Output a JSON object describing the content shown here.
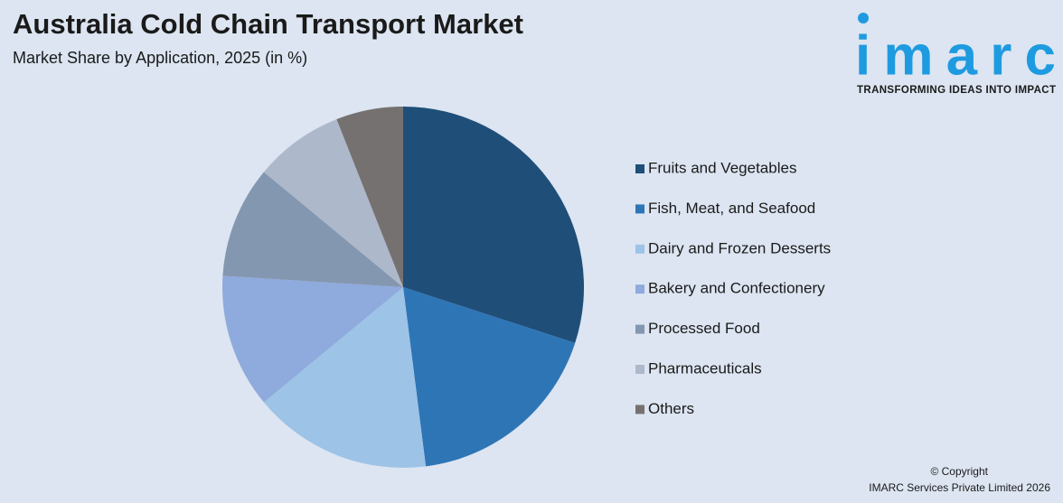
{
  "chart_data": {
    "type": "pie",
    "title": "Australia Cold Chain Transport Market",
    "subtitle": "Market Share by Application, 2025 (in %)",
    "categories": [
      "Fruits and Vegetables",
      "Fish, Meat, and Seafood",
      "Dairy and Frozen Desserts",
      "Bakery and Confectionery",
      "Processed Food",
      "Pharmaceuticals",
      "Others"
    ],
    "values": [
      30,
      18,
      16,
      12,
      10,
      8,
      6
    ],
    "colors": [
      "#1f4e79",
      "#2e75b6",
      "#9dc3e6",
      "#8faadc",
      "#8497b0",
      "#adb9ca",
      "#767171"
    ]
  },
  "logo": {
    "name": "imarc",
    "tagline": "TRANSFORMING IDEAS INTO IMPACT"
  },
  "footer": {
    "line1": "© Copyright",
    "line2": "IMARC Services Private Limited 2026"
  }
}
